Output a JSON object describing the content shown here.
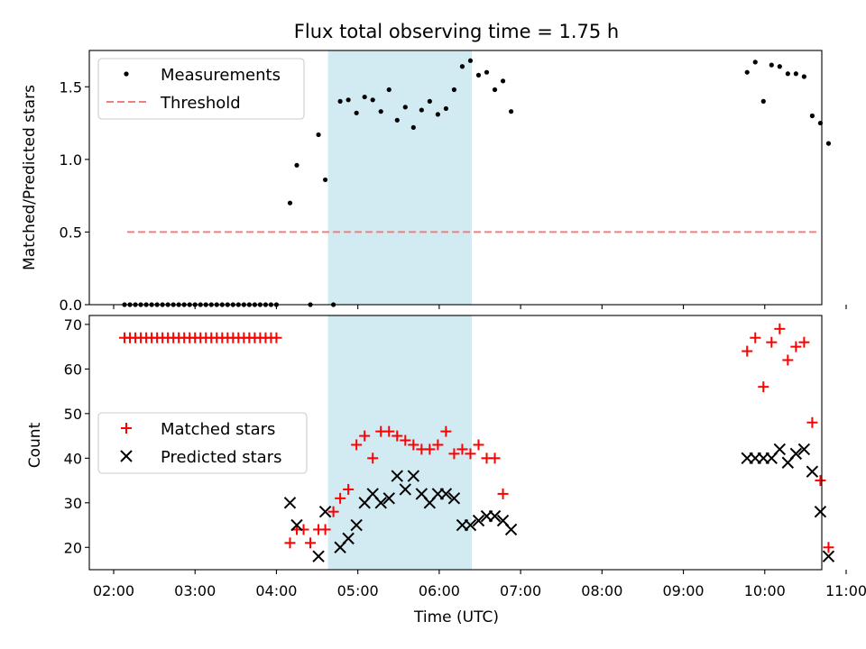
{
  "chart_data": [
    {
      "type": "scatter",
      "title": "Flux total observing time = 1.75 h",
      "xlabel": "",
      "ylabel": "Matched/Predicted stars",
      "xlim": [
        "02:00",
        "11:00"
      ],
      "ylim": [
        0,
        1.75
      ],
      "yticks": [
        "0.0",
        "0.5",
        "1.0",
        "1.5"
      ],
      "grid": false,
      "legend": {
        "placement": "top-left",
        "entries": [
          "Measurements",
          "Threshold"
        ]
      },
      "shaded_interval": {
        "start": "04:38",
        "end": "06:24",
        "color": "#add8e6"
      },
      "threshold": {
        "name": "Threshold",
        "value": 0.5,
        "start": "02:10",
        "end": "10:38",
        "color": "#f08080",
        "style": "dashed"
      },
      "series": [
        {
          "name": "Measurements",
          "color": "#000000",
          "marker": "dot",
          "points": [
            [
              "02:08",
              0
            ],
            [
              "02:12",
              0
            ],
            [
              "02:16",
              0
            ],
            [
              "02:20",
              0
            ],
            [
              "02:24",
              0
            ],
            [
              "02:28",
              0
            ],
            [
              "02:32",
              0
            ],
            [
              "02:36",
              0
            ],
            [
              "02:40",
              0
            ],
            [
              "02:44",
              0
            ],
            [
              "02:48",
              0
            ],
            [
              "02:52",
              0
            ],
            [
              "02:56",
              0
            ],
            [
              "03:00",
              0
            ],
            [
              "03:04",
              0
            ],
            [
              "03:08",
              0
            ],
            [
              "03:12",
              0
            ],
            [
              "03:16",
              0
            ],
            [
              "03:20",
              0
            ],
            [
              "03:24",
              0
            ],
            [
              "03:28",
              0
            ],
            [
              "03:32",
              0
            ],
            [
              "03:36",
              0
            ],
            [
              "03:40",
              0
            ],
            [
              "03:44",
              0
            ],
            [
              "03:48",
              0
            ],
            [
              "03:52",
              0
            ],
            [
              "03:56",
              0
            ],
            [
              "04:00",
              0
            ],
            [
              "04:10",
              0.7
            ],
            [
              "04:15",
              0.96
            ],
            [
              "04:25",
              0
            ],
            [
              "04:31",
              1.17
            ],
            [
              "04:36",
              0.86
            ],
            [
              "04:42",
              0
            ],
            [
              "04:47",
              1.4
            ],
            [
              "04:53",
              1.41
            ],
            [
              "04:59",
              1.32
            ],
            [
              "05:05",
              1.43
            ],
            [
              "05:11",
              1.41
            ],
            [
              "05:17",
              1.33
            ],
            [
              "05:23",
              1.48
            ],
            [
              "05:29",
              1.27
            ],
            [
              "05:35",
              1.36
            ],
            [
              "05:41",
              1.22
            ],
            [
              "05:47",
              1.34
            ],
            [
              "05:53",
              1.4
            ],
            [
              "05:59",
              1.31
            ],
            [
              "06:05",
              1.35
            ],
            [
              "06:11",
              1.48
            ],
            [
              "06:17",
              1.64
            ],
            [
              "06:23",
              1.68
            ],
            [
              "06:29",
              1.58
            ],
            [
              "06:35",
              1.6
            ],
            [
              "06:41",
              1.48
            ],
            [
              "06:47",
              1.54
            ],
            [
              "06:53",
              1.33
            ],
            [
              "09:47",
              1.6
            ],
            [
              "09:53",
              1.67
            ],
            [
              "09:59",
              1.4
            ],
            [
              "10:05",
              1.65
            ],
            [
              "10:11",
              1.64
            ],
            [
              "10:17",
              1.59
            ],
            [
              "10:23",
              1.59
            ],
            [
              "10:29",
              1.57
            ],
            [
              "10:35",
              1.3
            ],
            [
              "10:41",
              1.25
            ],
            [
              "10:47",
              1.11
            ]
          ]
        }
      ]
    },
    {
      "type": "scatter",
      "title": "",
      "xlabel": "Time (UTC)",
      "ylabel": "Count",
      "xlim": [
        "02:00",
        "11:00"
      ],
      "ylim": [
        15,
        72
      ],
      "xticks": [
        "02:00",
        "03:00",
        "04:00",
        "05:00",
        "06:00",
        "07:00",
        "08:00",
        "09:00",
        "10:00",
        "11:00"
      ],
      "yticks": [
        "20",
        "30",
        "40",
        "50",
        "60",
        "70"
      ],
      "grid": false,
      "legend": {
        "placement": "center-left",
        "entries": [
          "Matched stars",
          "Predicted stars"
        ]
      },
      "shaded_interval": {
        "start": "04:38",
        "end": "06:24",
        "color": "#add8e6"
      },
      "series": [
        {
          "name": "Matched stars",
          "color": "#ff0000",
          "marker": "plus",
          "points": [
            [
              "02:08",
              67
            ],
            [
              "02:12",
              67
            ],
            [
              "02:16",
              67
            ],
            [
              "02:20",
              67
            ],
            [
              "02:24",
              67
            ],
            [
              "02:28",
              67
            ],
            [
              "02:32",
              67
            ],
            [
              "02:36",
              67
            ],
            [
              "02:40",
              67
            ],
            [
              "02:44",
              67
            ],
            [
              "02:48",
              67
            ],
            [
              "02:52",
              67
            ],
            [
              "02:56",
              67
            ],
            [
              "03:00",
              67
            ],
            [
              "03:04",
              67
            ],
            [
              "03:08",
              67
            ],
            [
              "03:12",
              67
            ],
            [
              "03:16",
              67
            ],
            [
              "03:20",
              67
            ],
            [
              "03:24",
              67
            ],
            [
              "03:28",
              67
            ],
            [
              "03:32",
              67
            ],
            [
              "03:36",
              67
            ],
            [
              "03:40",
              67
            ],
            [
              "03:44",
              67
            ],
            [
              "03:48",
              67
            ],
            [
              "03:52",
              67
            ],
            [
              "03:56",
              67
            ],
            [
              "04:00",
              67
            ],
            [
              "04:10",
              21
            ],
            [
              "04:15",
              24
            ],
            [
              "04:20",
              24
            ],
            [
              "04:25",
              21
            ],
            [
              "04:31",
              24
            ],
            [
              "04:36",
              24
            ],
            [
              "04:42",
              28
            ],
            [
              "04:47",
              31
            ],
            [
              "04:53",
              33
            ],
            [
              "04:59",
              43
            ],
            [
              "05:05",
              45
            ],
            [
              "05:11",
              40
            ],
            [
              "05:17",
              46
            ],
            [
              "05:23",
              46
            ],
            [
              "05:29",
              45
            ],
            [
              "05:35",
              44
            ],
            [
              "05:41",
              43
            ],
            [
              "05:47",
              42
            ],
            [
              "05:53",
              42
            ],
            [
              "05:59",
              43
            ],
            [
              "06:05",
              46
            ],
            [
              "06:11",
              41
            ],
            [
              "06:17",
              42
            ],
            [
              "06:23",
              41
            ],
            [
              "06:29",
              43
            ],
            [
              "06:35",
              40
            ],
            [
              "06:41",
              40
            ],
            [
              "06:47",
              32
            ],
            [
              "09:47",
              64
            ],
            [
              "09:53",
              67
            ],
            [
              "09:59",
              56
            ],
            [
              "10:05",
              66
            ],
            [
              "10:11",
              69
            ],
            [
              "10:17",
              62
            ],
            [
              "10:23",
              65
            ],
            [
              "10:29",
              66
            ],
            [
              "10:35",
              48
            ],
            [
              "10:41",
              35
            ],
            [
              "10:47",
              20
            ]
          ]
        },
        {
          "name": "Predicted stars",
          "color": "#000000",
          "marker": "x",
          "points": [
            [
              "04:10",
              30
            ],
            [
              "04:15",
              25
            ],
            [
              "04:31",
              18
            ],
            [
              "04:36",
              28
            ],
            [
              "04:47",
              20
            ],
            [
              "04:53",
              22
            ],
            [
              "04:59",
              25
            ],
            [
              "05:05",
              30
            ],
            [
              "05:11",
              32
            ],
            [
              "05:17",
              30
            ],
            [
              "05:23",
              31
            ],
            [
              "05:29",
              36
            ],
            [
              "05:35",
              33
            ],
            [
              "05:41",
              36
            ],
            [
              "05:47",
              32
            ],
            [
              "05:53",
              30
            ],
            [
              "05:59",
              32
            ],
            [
              "06:05",
              32
            ],
            [
              "06:11",
              31
            ],
            [
              "06:17",
              25
            ],
            [
              "06:23",
              25
            ],
            [
              "06:29",
              26
            ],
            [
              "06:35",
              27
            ],
            [
              "06:41",
              27
            ],
            [
              "06:47",
              26
            ],
            [
              "06:53",
              24
            ],
            [
              "09:47",
              40
            ],
            [
              "09:53",
              40
            ],
            [
              "09:59",
              40
            ],
            [
              "10:05",
              40
            ],
            [
              "10:11",
              42
            ],
            [
              "10:17",
              39
            ],
            [
              "10:23",
              41
            ],
            [
              "10:29",
              42
            ],
            [
              "10:35",
              37
            ],
            [
              "10:41",
              28
            ],
            [
              "10:47",
              18
            ]
          ]
        }
      ]
    }
  ]
}
